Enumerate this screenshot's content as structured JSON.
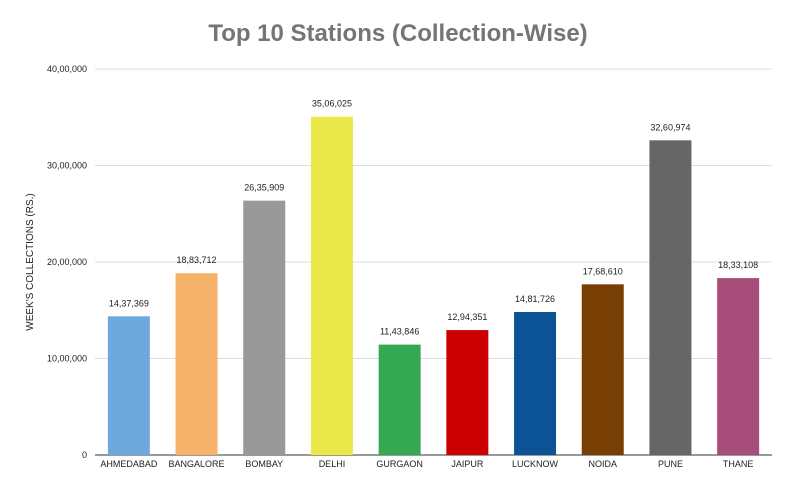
{
  "chart_data": {
    "type": "bar",
    "title": "Top 10 Stations (Collection-Wise)",
    "xlabel": "",
    "ylabel": "WEEK'S COLLECTIONS (RS.)",
    "ylim": [
      0,
      4000000
    ],
    "yticks": [
      {
        "value": 0,
        "label": "0"
      },
      {
        "value": 1000000,
        "label": "10,00,000"
      },
      {
        "value": 2000000,
        "label": "20,00,000"
      },
      {
        "value": 3000000,
        "label": "30,00,000"
      },
      {
        "value": 4000000,
        "label": "40,00,000"
      }
    ],
    "grid": true,
    "legend": "none",
    "categories": [
      "AHMEDABAD",
      "BANGALORE",
      "BOMBAY",
      "DELHI",
      "GURGAON",
      "JAIPUR",
      "LUCKNOW",
      "NOIDA",
      "PUNE",
      "THANE"
    ],
    "values": [
      1437369,
      1883712,
      2635909,
      3506025,
      1143846,
      1294351,
      1481726,
      1768610,
      3260974,
      1833108
    ],
    "value_labels": [
      "14,37,369",
      "18,83,712",
      "26,35,909",
      "35,06,025",
      "11,43,846",
      "12,94,351",
      "14,81,726",
      "17,68,610",
      "32,60,974",
      "18,33,108"
    ],
    "colors": [
      "#6fa8dc",
      "#f6b26b",
      "#999999",
      "#ebe84a",
      "#34a853",
      "#cc0000",
      "#0b5394",
      "#783f04",
      "#666666",
      "#a64d79"
    ]
  }
}
